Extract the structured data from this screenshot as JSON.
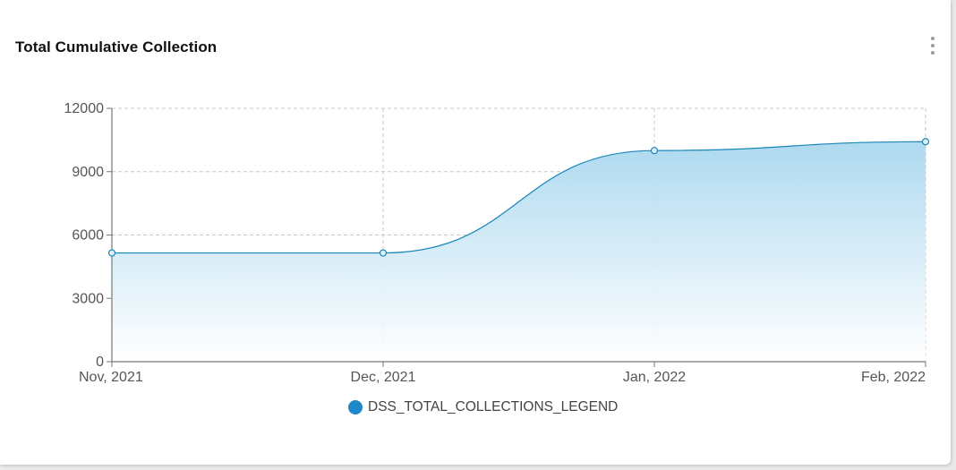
{
  "card": {
    "title": "Total Cumulative Collection",
    "menu_icon": "more-vertical-icon"
  },
  "legend": {
    "label": "DSS_TOTAL_COLLECTIONS_LEGEND",
    "color": "#1e88c8"
  },
  "colors": {
    "line": "#1a86b8",
    "area_top": "#a9d7ef",
    "area_bottom": "#ffffff",
    "grid": "#c8c8c8",
    "axis": "#777777"
  },
  "chart_data": {
    "type": "area",
    "categories": [
      "Nov, 2021",
      "Dec, 2021",
      "Jan, 2022",
      "Feb, 2022"
    ],
    "series": [
      {
        "name": "DSS_TOTAL_COLLECTIONS_LEGEND",
        "values": [
          5150,
          5150,
          10000,
          10420
        ]
      }
    ],
    "yticks": [
      "0",
      "3000",
      "6000",
      "9000",
      "12000"
    ],
    "ylim": [
      0,
      12000
    ],
    "grid": true,
    "legend_position": "bottom-center"
  }
}
